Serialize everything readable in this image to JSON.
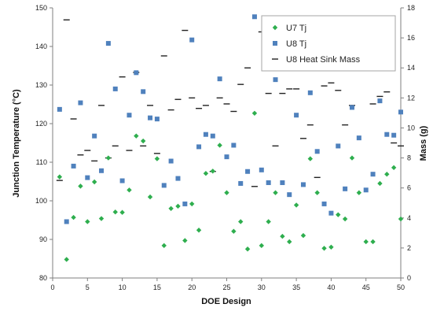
{
  "chart_data": {
    "type": "scatter",
    "xlabel": "DOE Design",
    "ylabel": "Junction Temperature (°C)",
    "y2label": "Mass (g)",
    "xlim": [
      0,
      50
    ],
    "ylim": [
      80,
      150
    ],
    "y2lim": [
      0,
      18
    ],
    "x_ticks": [
      0,
      5,
      10,
      15,
      20,
      25,
      30,
      35,
      40,
      45,
      50
    ],
    "y_ticks": [
      80,
      90,
      100,
      110,
      120,
      130,
      140,
      150
    ],
    "y2_ticks": [
      0,
      2,
      4,
      6,
      8,
      10,
      12,
      14,
      16,
      18
    ],
    "grid": false,
    "legend_position": "top-right",
    "series": [
      {
        "name": "U7 Tj",
        "axis": "left",
        "marker": "diamond",
        "color": "#2eae4e",
        "x": [
          1,
          2,
          3,
          4,
          5,
          6,
          7,
          8,
          9,
          10,
          11,
          12,
          13,
          14,
          15,
          16,
          17,
          18,
          19,
          20,
          21,
          22,
          23,
          24,
          25,
          26,
          27,
          28,
          29,
          30,
          31,
          32,
          33,
          34,
          35,
          36,
          37,
          38,
          39,
          40,
          41,
          42,
          43,
          44,
          45,
          46,
          47,
          48,
          49,
          50
        ],
        "y": [
          106.2,
          84.8,
          95.7,
          103.8,
          94.6,
          104.9,
          95.4,
          111.1,
          97.1,
          97.0,
          102.8,
          116.8,
          115.5,
          101.0,
          110.9,
          88.4,
          98.0,
          98.6,
          89.7,
          99.2,
          92.4,
          107.1,
          107.7,
          114.4,
          102.1,
          92.1,
          94.6,
          87.5,
          122.7,
          88.4,
          94.6,
          102.1,
          90.8,
          89.4,
          98.9,
          91.0,
          110.9,
          102.1,
          87.7,
          88.0,
          96.4,
          95.3,
          111.1,
          102.1,
          89.4,
          89.4,
          104.5,
          106.9,
          108.6,
          95.3
        ]
      },
      {
        "name": "U8 Tj",
        "axis": "left",
        "marker": "square",
        "color": "#4f81bd",
        "x": [
          1,
          2,
          3,
          4,
          5,
          6,
          7,
          8,
          9,
          10,
          11,
          12,
          13,
          14,
          15,
          16,
          17,
          18,
          19,
          20,
          21,
          22,
          23,
          24,
          25,
          26,
          27,
          28,
          29,
          30,
          31,
          32,
          33,
          34,
          35,
          36,
          37,
          38,
          39,
          40,
          41,
          42,
          43,
          44,
          45,
          46,
          47,
          48,
          49,
          50
        ],
        "y": [
          123.7,
          94.6,
          109.0,
          125.4,
          106.0,
          116.8,
          107.8,
          140.8,
          129.0,
          105.2,
          122.2,
          133.2,
          128.3,
          121.5,
          121.2,
          104.0,
          110.3,
          105.8,
          99.2,
          141.7,
          114.0,
          117.2,
          116.8,
          131.6,
          111.4,
          114.4,
          104.5,
          107.6,
          147.7,
          108.0,
          104.7,
          131.4,
          104.7,
          101.6,
          122.2,
          104.2,
          128.0,
          112.8,
          99.2,
          96.8,
          114.2,
          103.1,
          124.2,
          116.3,
          102.8,
          106.9,
          125.9,
          117.2,
          117.0,
          123.0
        ]
      },
      {
        "name": "U8 Heat Sink Mass",
        "axis": "right",
        "marker": "dash",
        "color": "#222222",
        "x": [
          1,
          2,
          3,
          4,
          5,
          6,
          7,
          8,
          9,
          10,
          11,
          12,
          13,
          14,
          15,
          16,
          17,
          18,
          19,
          20,
          21,
          22,
          23,
          24,
          25,
          26,
          27,
          28,
          29,
          30,
          31,
          32,
          33,
          34,
          35,
          36,
          37,
          38,
          39,
          40,
          41,
          42,
          43,
          44,
          45,
          46,
          47,
          48,
          49,
          50
        ],
        "y": [
          6.5,
          17.2,
          10.6,
          8.2,
          8.5,
          7.8,
          11.5,
          8.0,
          8.8,
          13.4,
          8.5,
          13.7,
          8.8,
          11.5,
          8.3,
          14.8,
          11.2,
          11.9,
          16.5,
          12.0,
          11.3,
          11.5,
          7.1,
          12.0,
          11.6,
          11.1,
          12.9,
          14.0,
          6.1,
          16.4,
          12.3,
          8.8,
          12.3,
          12.6,
          12.6,
          9.3,
          10.2,
          6.7,
          12.8,
          13.0,
          12.5,
          10.2,
          11.5,
          13.9,
          16.6,
          11.6,
          12.1,
          12.4,
          9.0,
          8.8
        ]
      }
    ]
  }
}
